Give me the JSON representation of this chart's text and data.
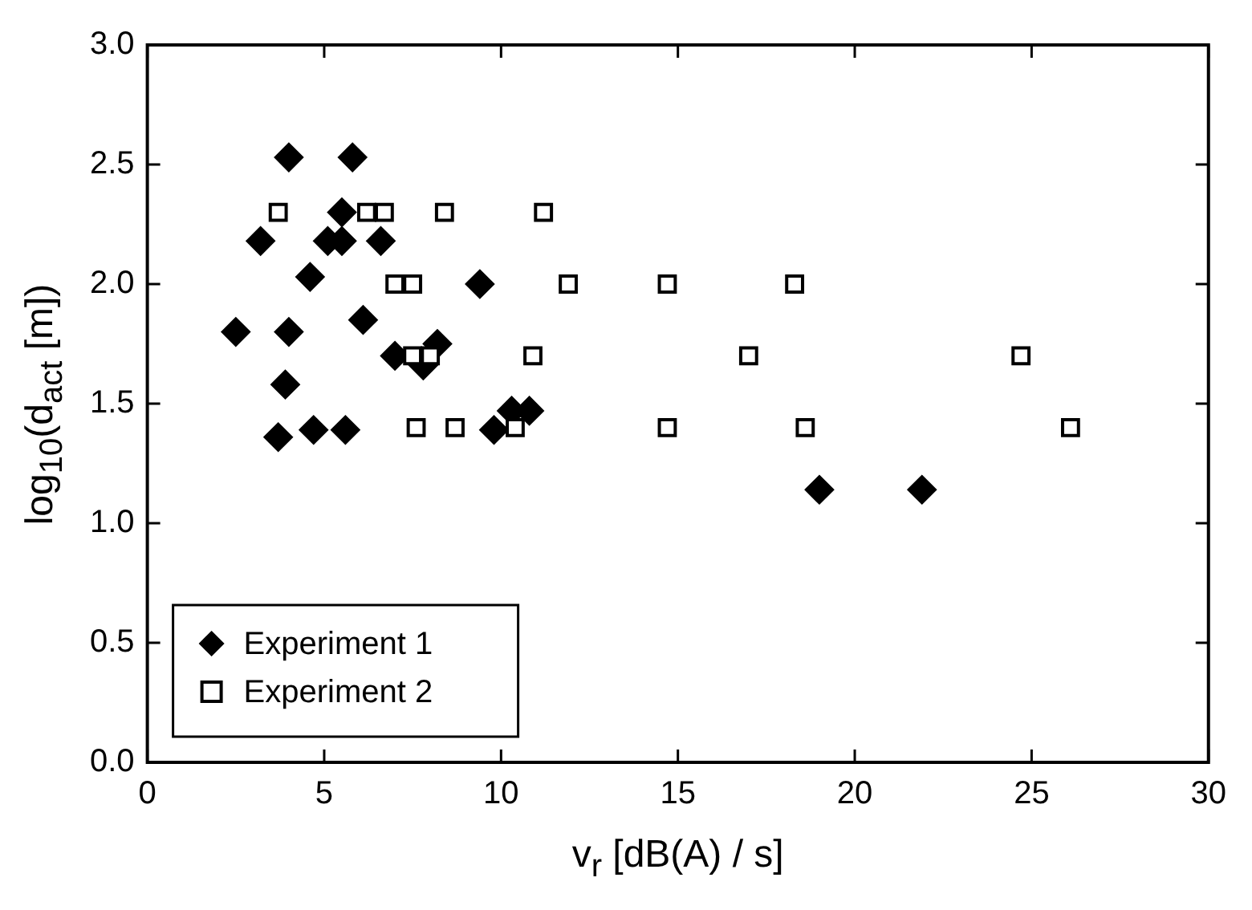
{
  "chart_data": {
    "type": "scatter",
    "xlabel": "v$_{r}$ [dB(A) / s]",
    "ylabel": "log$_{10}$(d$_{act}$ [m])",
    "xlim": [
      0,
      30
    ],
    "xticks": [
      0,
      5,
      10,
      15,
      20,
      25,
      30
    ],
    "ylim": [
      0,
      3
    ],
    "yticks": [
      {
        "value": 0,
        "label": "0.0"
      },
      0.5,
      {
        "value": 1,
        "label": "1.0"
      },
      1.5,
      {
        "value": 2,
        "label": "2.0"
      },
      2.5,
      {
        "value": 3,
        "label": "3.0"
      }
    ],
    "grid": false,
    "legend": "bottom left",
    "series": [
      {
        "name": "Experiment 1",
        "color": "#000000",
        "marker": "diamond",
        "x": [
          4.0,
          5.8,
          5.5,
          3.2,
          5.1,
          5.5,
          6.6,
          4.6,
          9.4,
          2.5,
          4.0,
          6.1,
          8.2,
          7.0,
          7.8,
          3.9,
          3.7,
          4.7,
          5.6,
          9.8,
          10.3,
          10.8,
          19.0,
          21.9
        ],
        "values": [
          2.53,
          2.53,
          2.3,
          2.18,
          2.18,
          2.18,
          2.18,
          2.03,
          2.0,
          1.8,
          1.8,
          1.85,
          1.75,
          1.7,
          1.66,
          1.58,
          1.36,
          1.39,
          1.39,
          1.39,
          1.47,
          1.47,
          1.14,
          1.14
        ]
      },
      {
        "name": "Experiment 2",
        "color": "#000000",
        "marker": "square",
        "x": [
          3.7,
          6.2,
          6.7,
          8.4,
          11.2,
          7.0,
          7.5,
          11.9,
          14.7,
          18.3,
          7.5,
          8.0,
          10.9,
          17.0,
          24.7,
          7.6,
          8.7,
          10.4,
          14.7,
          18.6,
          26.1
        ],
        "values": [
          2.3,
          2.3,
          2.3,
          2.3,
          2.3,
          2.0,
          2.0,
          2.0,
          2.0,
          2.0,
          1.7,
          1.7,
          1.7,
          1.7,
          1.7,
          1.4,
          1.4,
          1.4,
          1.4,
          1.4,
          1.4
        ]
      }
    ]
  }
}
